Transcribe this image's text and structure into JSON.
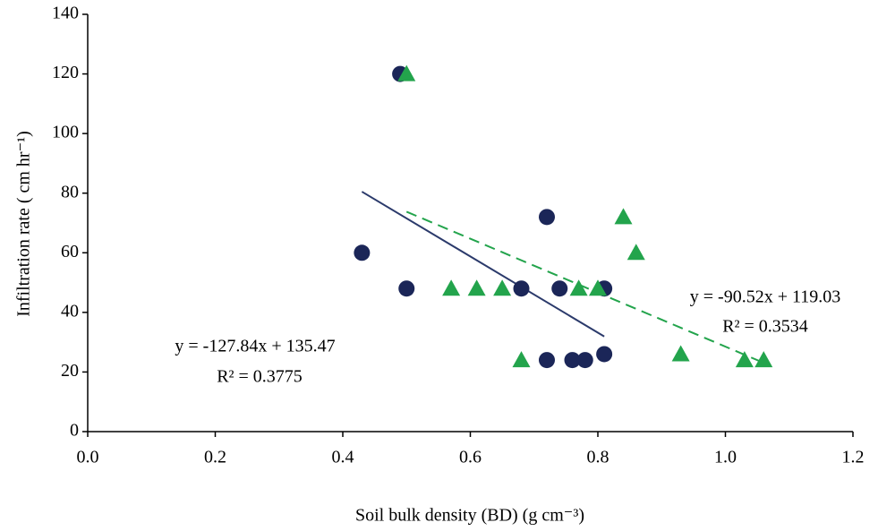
{
  "chart_data": {
    "type": "scatter",
    "x_label": "Soil bulk density (BD) (g cm⁻³)",
    "y_label": "Infiltration rate ( cm hr⁻¹)",
    "xlim": [
      0,
      1.2
    ],
    "xticks": [
      {
        "value": 0,
        "label": "0.0"
      },
      0.2,
      0.4,
      0.6,
      0.8,
      {
        "value": 1,
        "label": "1.0"
      },
      1.2
    ],
    "ylim": [
      0,
      140
    ],
    "yticks": [
      0,
      20,
      40,
      60,
      80,
      100,
      120,
      140
    ],
    "grid": false,
    "series": [
      {
        "marker": "circle",
        "color": "#1b2658",
        "x": [
          0.49,
          0.43,
          0.5,
          0.68,
          0.74,
          0.81,
          0.72,
          0.72,
          0.76,
          0.78,
          0.81
        ],
        "values": [
          120,
          60,
          48,
          48,
          48,
          48,
          72,
          24,
          24,
          24,
          26
        ],
        "trend": {
          "slope": -127.84,
          "intercept": 135.47,
          "style": "solid",
          "equation": "y = -127.84x + 135.47",
          "r2": "R² = 0.3775"
        }
      },
      {
        "marker": "triangle",
        "color": "#23a44c",
        "x": [
          0.5,
          0.57,
          0.61,
          0.65,
          0.77,
          0.8,
          0.84,
          0.86,
          0.68,
          0.93,
          1.03,
          1.06
        ],
        "values": [
          120,
          48,
          48,
          48,
          48,
          48,
          72,
          60,
          24,
          26,
          24,
          24
        ],
        "trend": {
          "slope": -90.52,
          "intercept": 119.03,
          "style": "dashed",
          "equation": "y = -90.52x + 119.03",
          "r2": "R² = 0.3534"
        }
      }
    ]
  }
}
